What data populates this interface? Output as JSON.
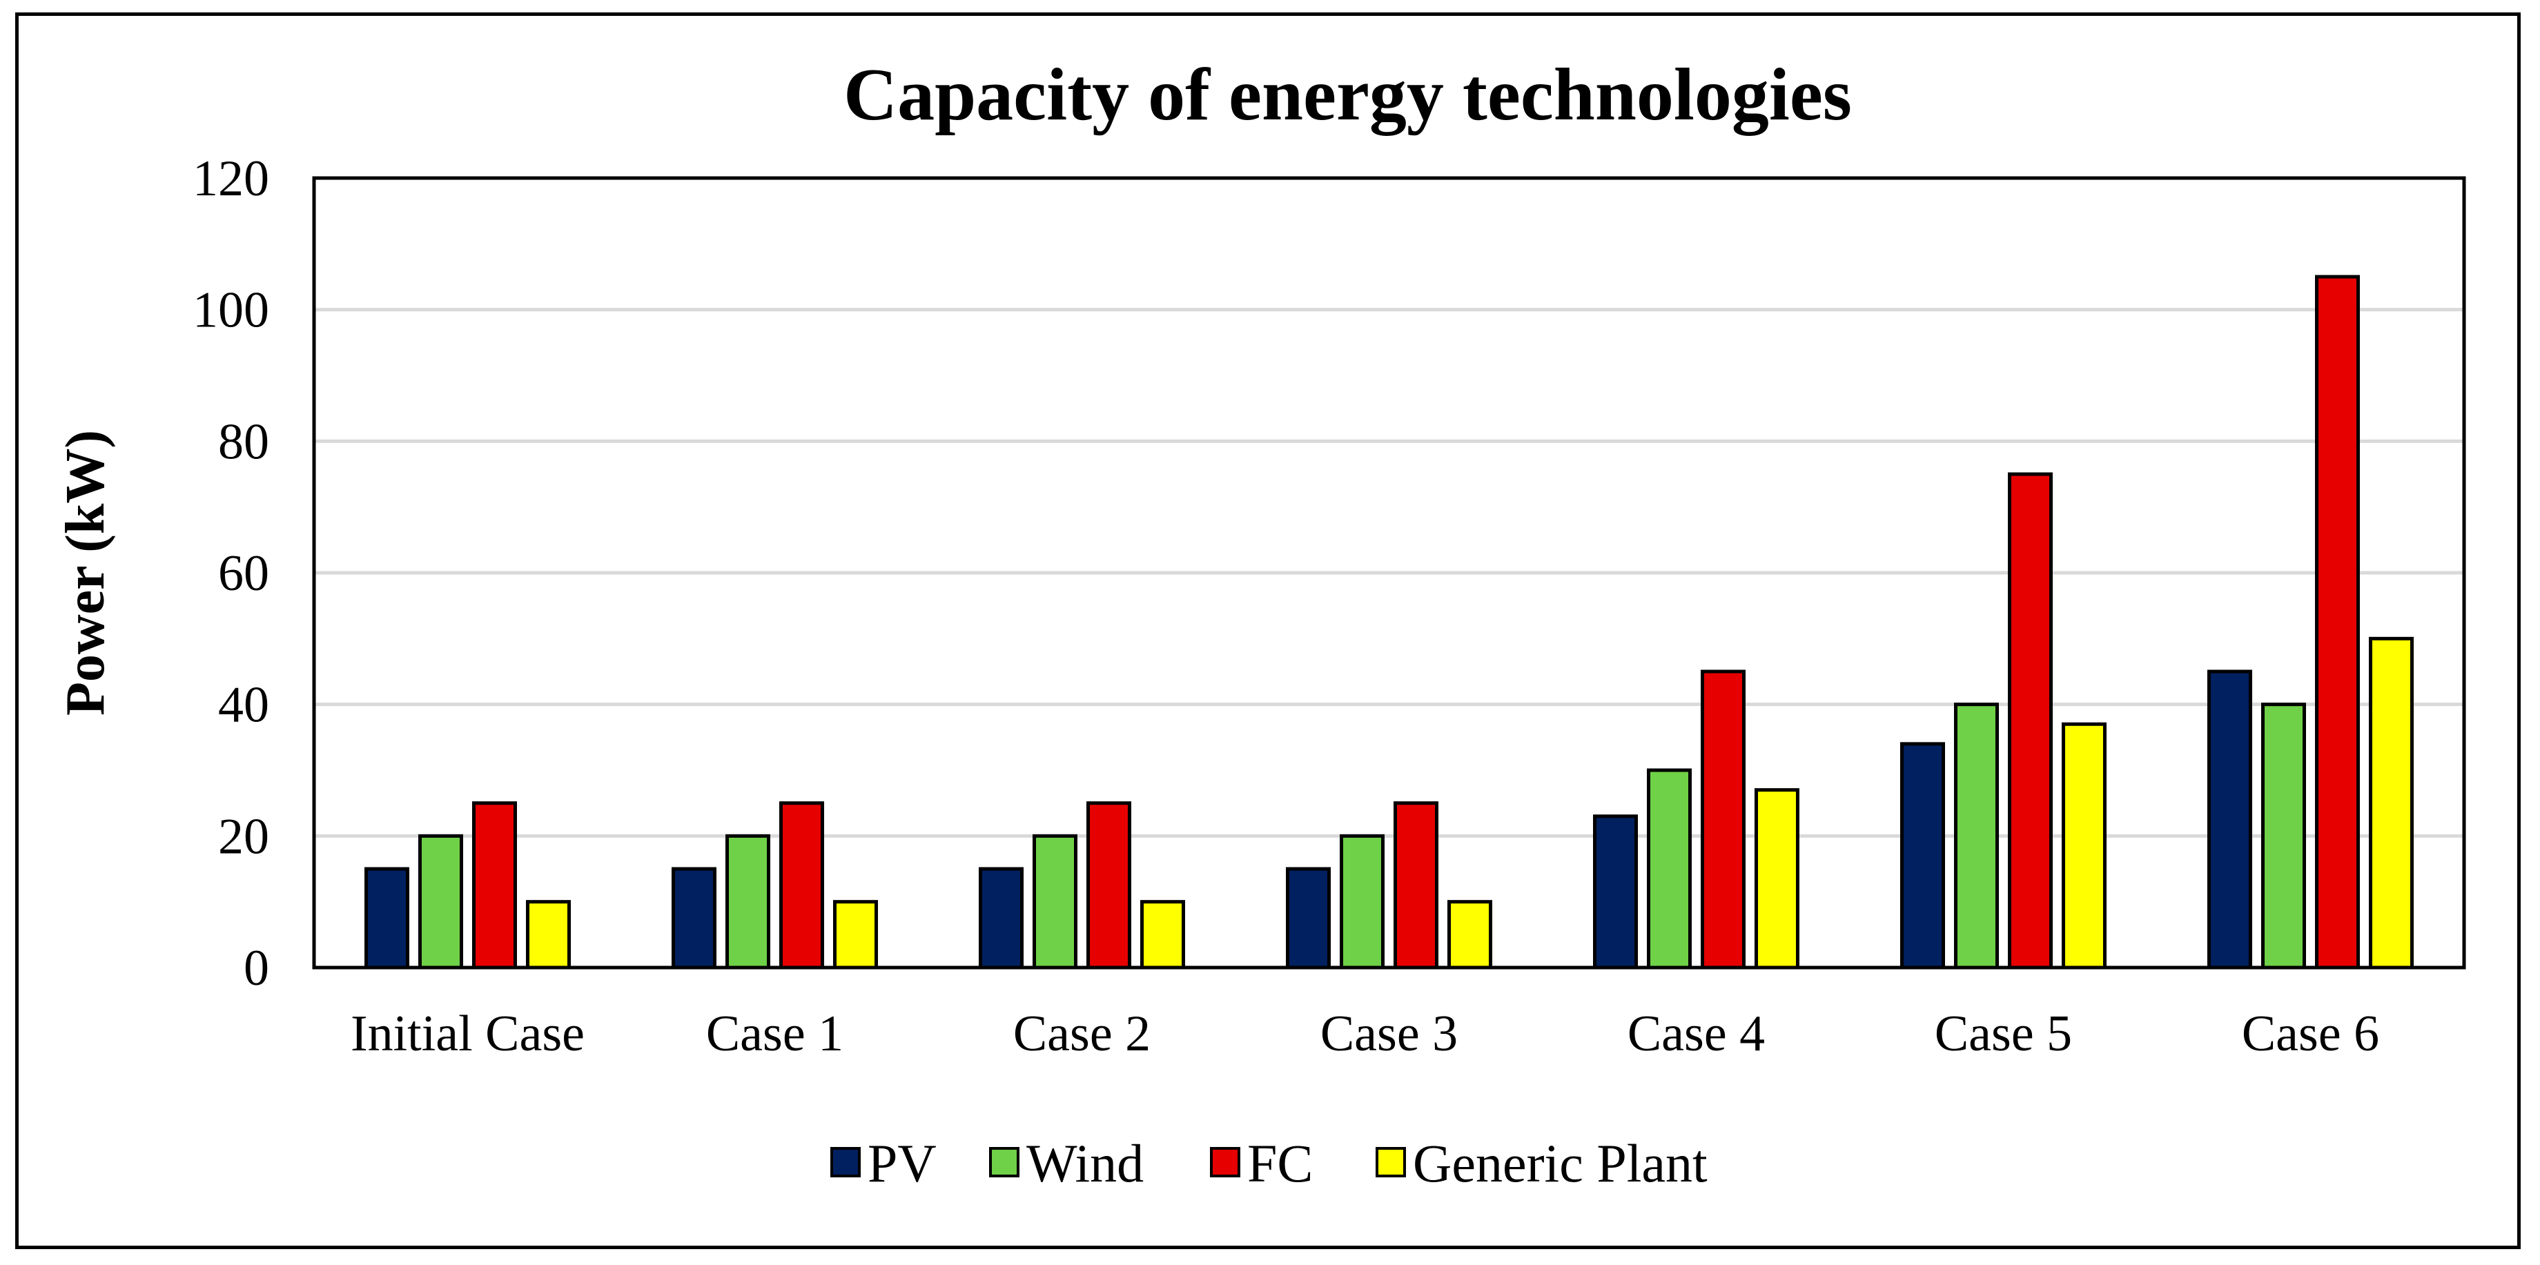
{
  "chart_data": {
    "type": "bar",
    "title": "Capacity of energy technologies",
    "xlabel": "",
    "ylabel": "Power (kW)",
    "ylim": [
      0,
      120
    ],
    "yticks": [
      0,
      20,
      40,
      60,
      80,
      100,
      120
    ],
    "grid": true,
    "legend_position": "bottom",
    "categories": [
      "Initial Case",
      "Case 1",
      "Case 2",
      "Case 3",
      "Case 4",
      "Case 5",
      "Case 6"
    ],
    "series": [
      {
        "name": "PV",
        "color": "#002060",
        "values": [
          15,
          15,
          15,
          15,
          23,
          34,
          45
        ]
      },
      {
        "name": "Wind",
        "color": "#6fd147",
        "values": [
          20,
          20,
          20,
          20,
          30,
          40,
          40
        ]
      },
      {
        "name": "FC",
        "color": "#e60000",
        "values": [
          25,
          25,
          25,
          25,
          45,
          75,
          105
        ]
      },
      {
        "name": "Generic Plant",
        "color": "#ffff00",
        "values": [
          10,
          10,
          10,
          10,
          27,
          37,
          50
        ]
      }
    ]
  }
}
